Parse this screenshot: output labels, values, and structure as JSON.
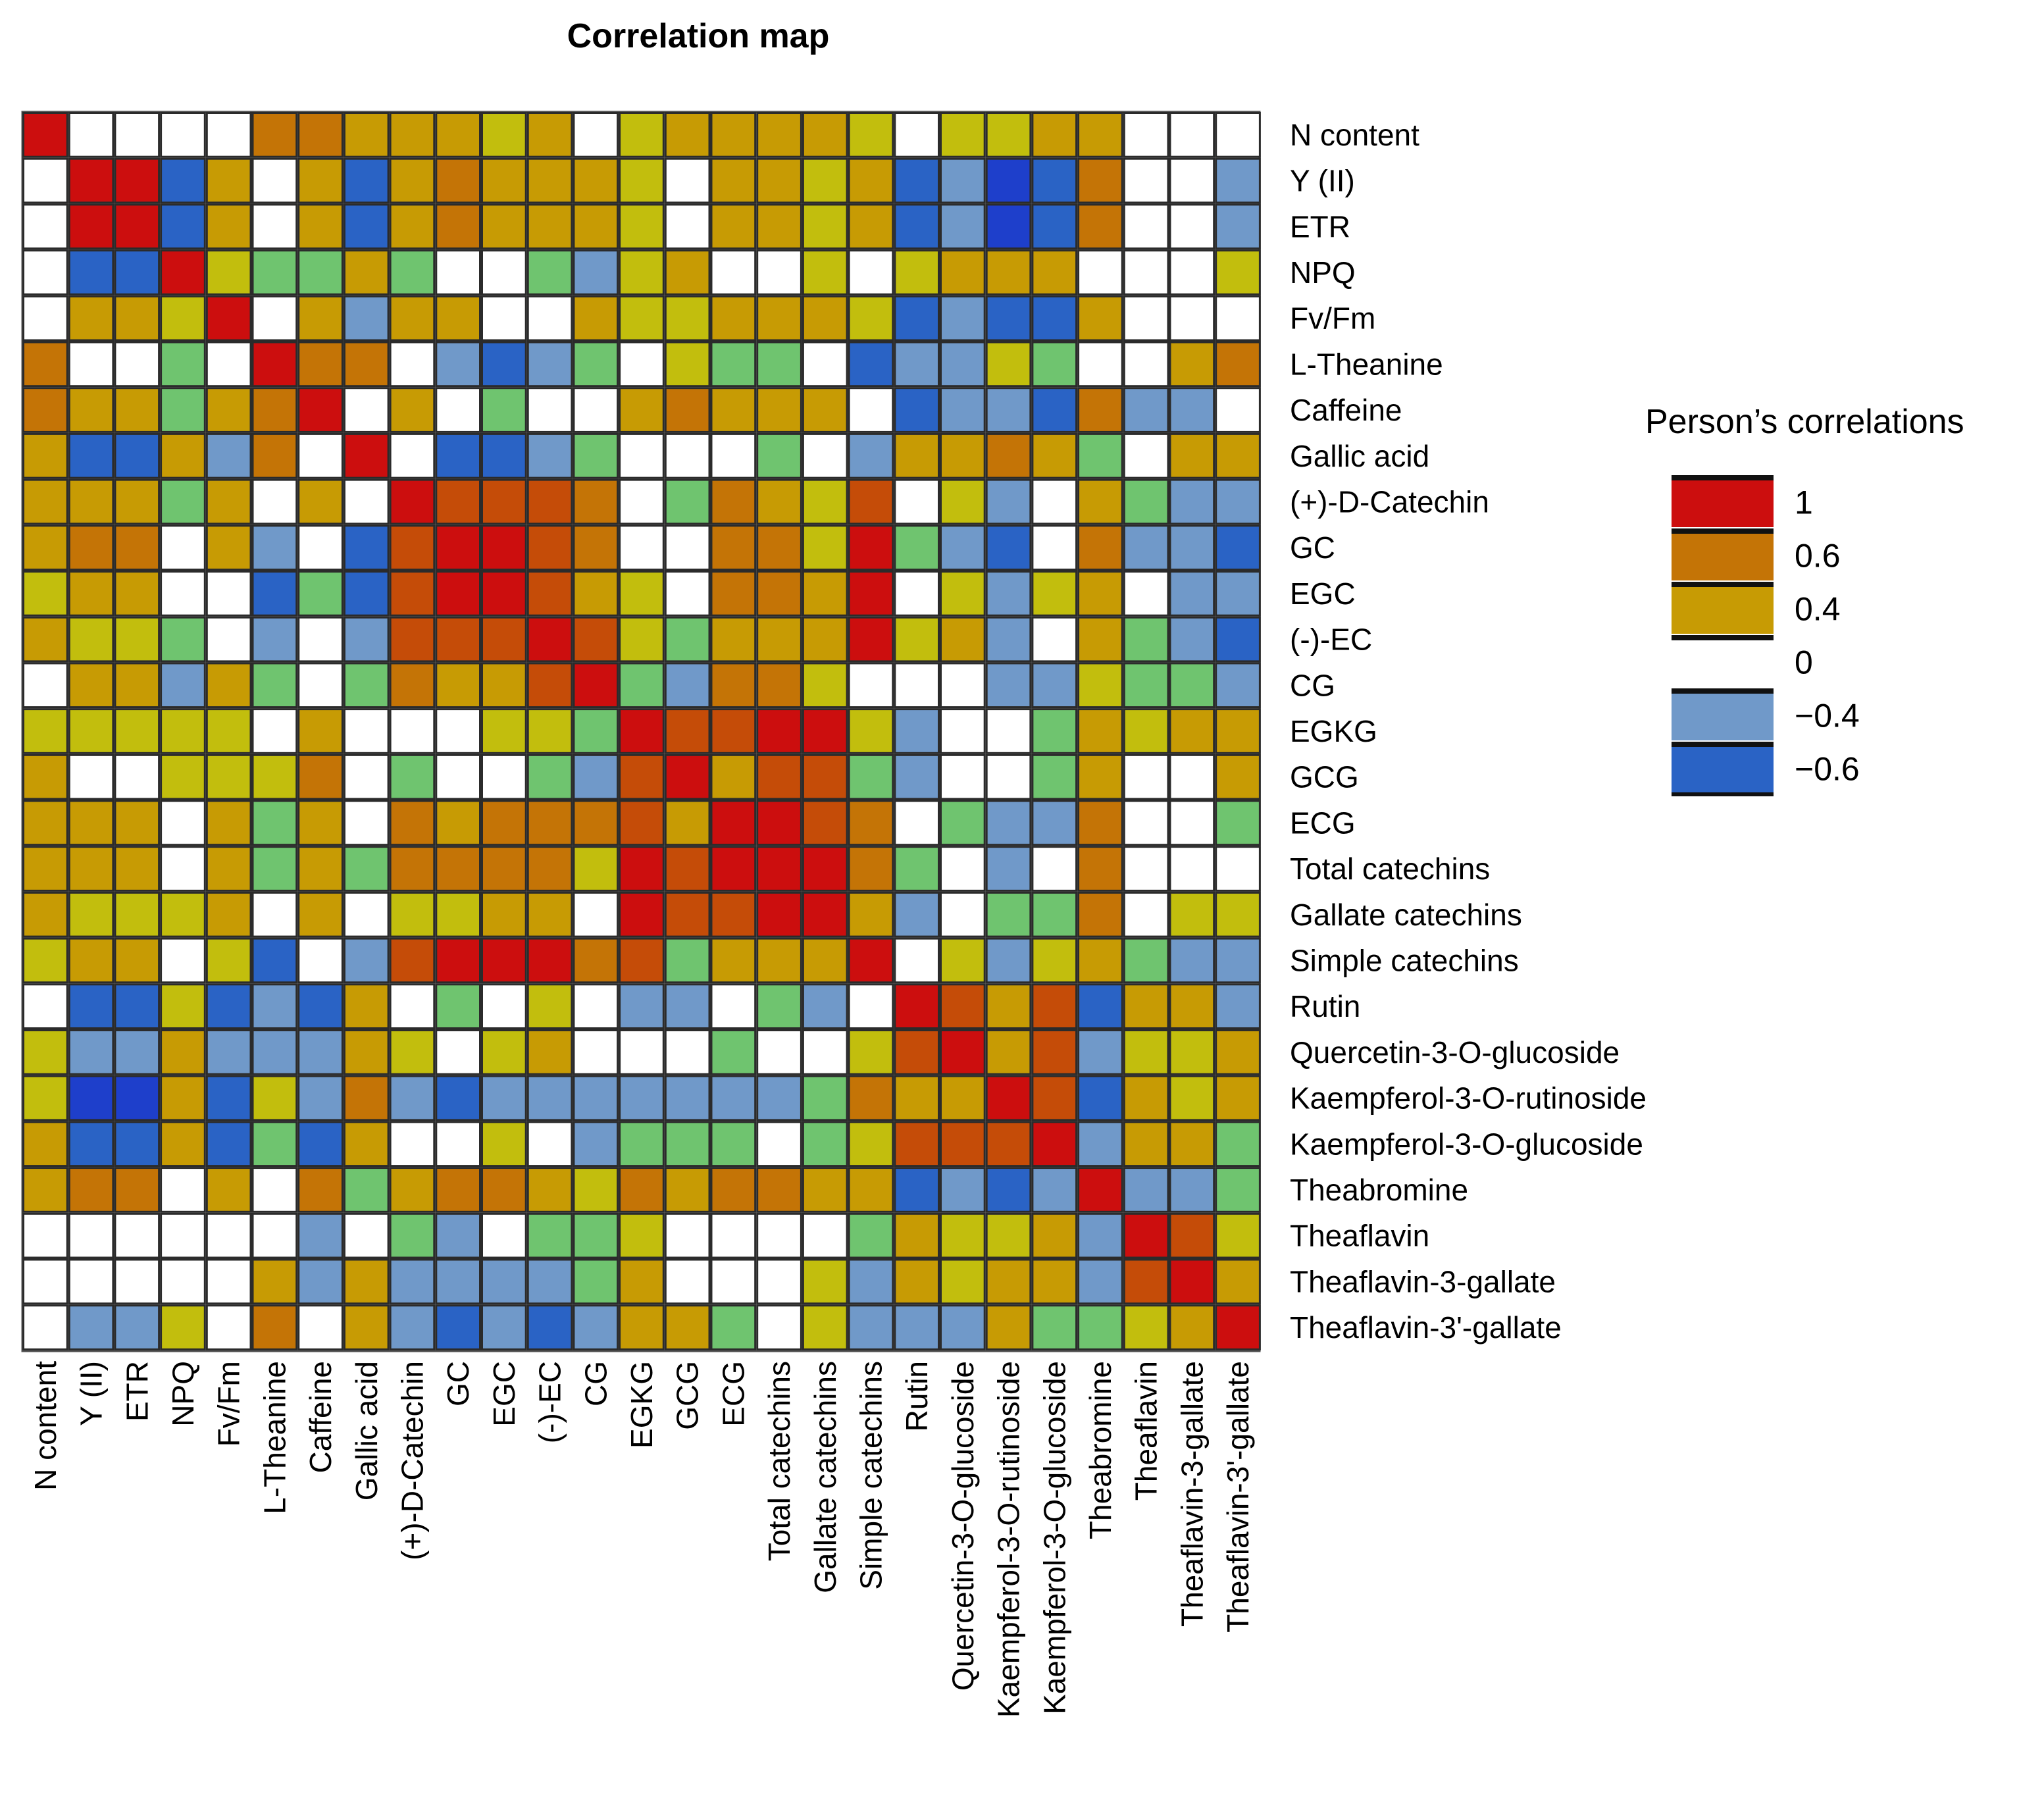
{
  "chart_data": {
    "type": "heatmap",
    "title": "Correlation map",
    "variables": [
      "N content",
      "Y (II)",
      "ETR",
      "NPQ",
      "Fv/Fm",
      "L-Theanine",
      "Caffeine",
      "Gallic acid",
      "(+)-D-Catechin",
      "GC",
      "EGC",
      "(-)-EC",
      "CG",
      "EGKG",
      "GCG",
      "ECG",
      "Total catechins",
      "Gallate catechins",
      "Simple catechins",
      "Rutin",
      "Quercetin-3-O-glucoside",
      "Kaempferol-3-O-rutinoside",
      "Kaempferol-3-O-glucoside",
      "Theabromine",
      "Theaflavin",
      "Theaflavin-3-gallate",
      "Theaflavin-3'-gallate"
    ],
    "category_codes": {
      "R": 1,
      "D": 0.8,
      "O": 0.6,
      "G": 0.4,
      "Y": 0.3,
      "E": 0.1,
      "W": 0,
      "L": -0.4,
      "B": -0.6
    },
    "matrix_codes": [
      "RWWWWOOGGGYGWYGGGGYWYYGGWWW",
      "WRRBGWGBGOGGGYWGGYGBLBBOWWL",
      "WRRBGWGBGOGGGYWGGYGBLBBOWWL",
      "WBBRYEEGEWWELYGWWYWYGGGWWWY",
      "WGGYRWGLGGWWGYYGGGYBLBBGWWW",
      "OWWEWROOWLBLEWYEEWBLLYEWWGO",
      "OGGEGORWGWEWWGOGGGWBLLBOLLW",
      "GBBGLOWRWBBLEWWWEWLGGOGEWGG",
      "GGGEGWGWRDDDOWEOGYDWYLWGELL",
      "GOOWGLWBDRRDOWWOOYRELBWOLLB",
      "YGGWWBEBDRRDGYWOOGRWYLYGWLL",
      "GYYEWLWLDDDRDYEGGGRYGLWGELB",
      "WGGLGEWEOGGDRELOOYWWWLLYEEL",
      "YYYYYWGWWWYYERDDRRYLWWEGYGG",
      "GWWYYYOWEWWELDRGDDELWWEGWWG",
      "GGGWGEGWOGOOODGRRDOWELLOWWE",
      "GGGWGEGEOOOOYRDRRROEWLWOWWW",
      "GYYYGWGWYYGGWRDDRRGLWEEOWYY",
      "YGGWYBWLDRRRODEGGGRWYLYGELL",
      "WBBYBLBGWEWYWLLWELWRDGDBGGL",
      "YLLGLLLGYWYGWWWEWWYDRGDLYYG",
      "YBBGBYLOLBLLLLLLLEOGGRDBGYG",
      "GBBGBEBGWWYWLEEEWEYDDDRLGGE",
      "GOOWGWOEGOOGYOGOOGGBLBLRLLE",
      "WWWWWWLWELWEEYWWWWEGYYGLRDY",
      "WWWWWGLGLLLLEGWWWYLGYGGLDRG",
      "WLLYWOWGLBLBLGGEWYLLLGEEYGR"
    ],
    "legend": {
      "title": "Person’s  correlations",
      "ticks": [
        "1",
        "0.6",
        "0.4",
        "0",
        "−0.4",
        "−0.6"
      ]
    },
    "colors": {
      "R": "#cc0e0e",
      "D": "#c54c08",
      "O": "#c47406",
      "G": "#c79b04",
      "Y": "#c2be0d",
      "E": "#6fc46f",
      "W": "#ffffff",
      "L": "#7099c9",
      "B": "#2a63c5",
      "LB": "#1e3fcb"
    }
  }
}
